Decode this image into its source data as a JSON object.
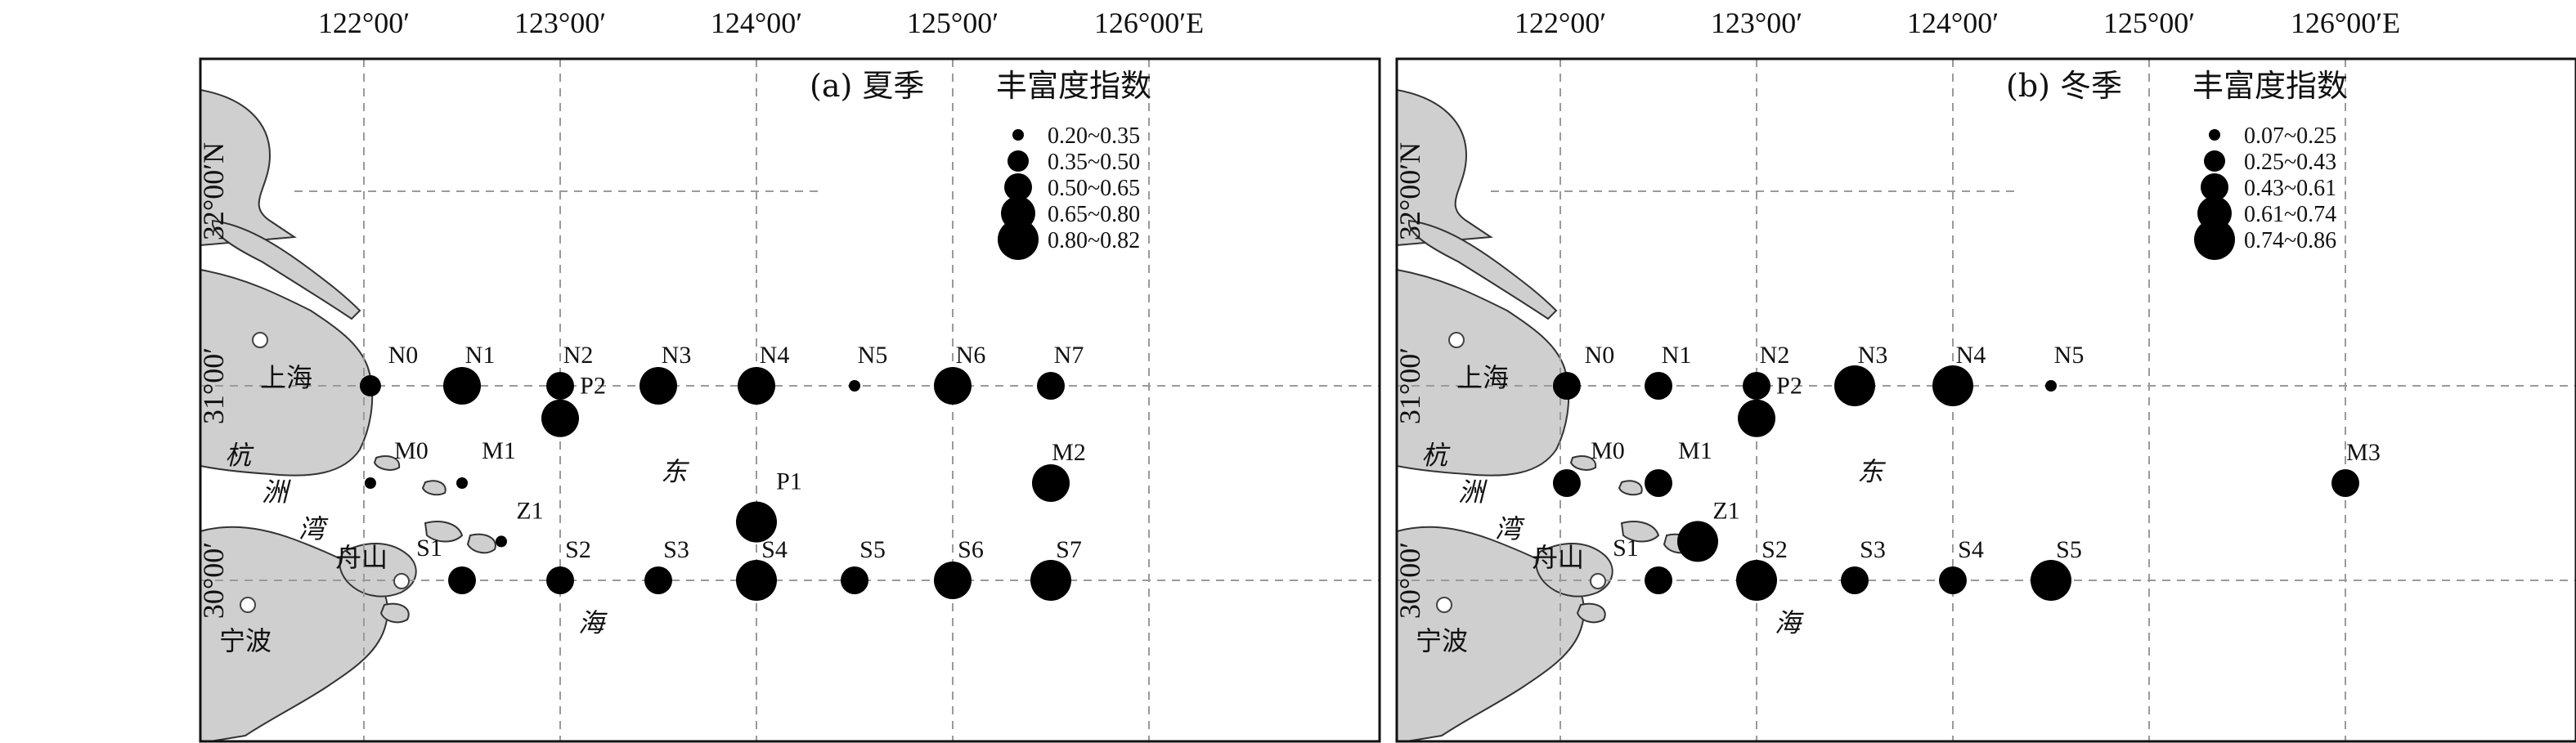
{
  "panels": [
    {
      "id": "a",
      "title": "(a) 夏季",
      "legend_title": "丰富度指数",
      "legend": [
        {
          "label": "0.20~0.35",
          "size": 1
        },
        {
          "label": "0.35~0.50",
          "size": 2
        },
        {
          "label": "0.50~0.65",
          "size": 3
        },
        {
          "label": "0.65~0.80",
          "size": 4
        },
        {
          "label": "0.80~0.82",
          "size": 5
        }
      ],
      "stations": [
        {
          "name": "N0",
          "lon": 122.033,
          "lat": 31.0,
          "class": 2
        },
        {
          "name": "N1",
          "lon": 122.5,
          "lat": 31.0,
          "class": 4
        },
        {
          "name": "N2",
          "lon": 123.0,
          "lat": 31.0,
          "class": 3
        },
        {
          "name": "N3",
          "lon": 123.5,
          "lat": 31.0,
          "class": 4
        },
        {
          "name": "N4",
          "lon": 124.0,
          "lat": 31.0,
          "class": 4
        },
        {
          "name": "N5",
          "lon": 124.5,
          "lat": 31.0,
          "class": 1
        },
        {
          "name": "N6",
          "lon": 125.0,
          "lat": 31.0,
          "class": 4
        },
        {
          "name": "N7",
          "lon": 125.5,
          "lat": 31.0,
          "class": 3
        },
        {
          "name": "P2",
          "lon": 123.0,
          "lat": 30.833,
          "class": 4
        },
        {
          "name": "M0",
          "lon": 122.033,
          "lat": 30.5,
          "class": 1
        },
        {
          "name": "M1",
          "lon": 122.5,
          "lat": 30.5,
          "class": 1
        },
        {
          "name": "M2",
          "lon": 125.5,
          "lat": 30.5,
          "class": 4
        },
        {
          "name": "P1",
          "lon": 124.0,
          "lat": 30.3,
          "class": 5
        },
        {
          "name": "Z1",
          "lon": 122.7,
          "lat": 30.2,
          "class": 1
        },
        {
          "name": "S1",
          "lon": 122.5,
          "lat": 30.0,
          "class": 3
        },
        {
          "name": "S2",
          "lon": 123.0,
          "lat": 30.0,
          "class": 3
        },
        {
          "name": "S3",
          "lon": 123.5,
          "lat": 30.0,
          "class": 3
        },
        {
          "name": "S4",
          "lon": 124.0,
          "lat": 30.0,
          "class": 5
        },
        {
          "name": "S5",
          "lon": 124.5,
          "lat": 30.0,
          "class": 3
        },
        {
          "name": "S6",
          "lon": 125.0,
          "lat": 30.0,
          "class": 4
        },
        {
          "name": "S7",
          "lon": 125.5,
          "lat": 30.0,
          "class": 5
        }
      ]
    },
    {
      "id": "b",
      "title": "(b) 冬季",
      "legend_title": "丰富度指数",
      "legend": [
        {
          "label": "0.07~0.25",
          "size": 1
        },
        {
          "label": "0.25~0.43",
          "size": 2
        },
        {
          "label": "0.43~0.61",
          "size": 3
        },
        {
          "label": "0.61~0.74",
          "size": 4
        },
        {
          "label": "0.74~0.86",
          "size": 5
        }
      ],
      "stations": [
        {
          "name": "N0",
          "lon": 122.033,
          "lat": 31.0,
          "class": 3
        },
        {
          "name": "N1",
          "lon": 122.5,
          "lat": 31.0,
          "class": 3
        },
        {
          "name": "N2",
          "lon": 123.0,
          "lat": 31.0,
          "class": 3
        },
        {
          "name": "N3",
          "lon": 123.5,
          "lat": 31.0,
          "class": 5
        },
        {
          "name": "N4",
          "lon": 124.0,
          "lat": 31.0,
          "class": 5
        },
        {
          "name": "N5",
          "lon": 124.5,
          "lat": 31.0,
          "class": 1
        },
        {
          "name": "P2",
          "lon": 123.0,
          "lat": 30.833,
          "class": 4
        },
        {
          "name": "M0",
          "lon": 122.033,
          "lat": 30.5,
          "class": 3
        },
        {
          "name": "M1",
          "lon": 122.5,
          "lat": 30.5,
          "class": 3
        },
        {
          "name": "M3",
          "lon": 126.0,
          "lat": 30.5,
          "class": 3
        },
        {
          "name": "Z1",
          "lon": 122.7,
          "lat": 30.2,
          "class": 5
        },
        {
          "name": "S1",
          "lon": 122.5,
          "lat": 30.0,
          "class": 3
        },
        {
          "name": "S2",
          "lon": 123.0,
          "lat": 30.0,
          "class": 5
        },
        {
          "name": "S3",
          "lon": 123.5,
          "lat": 30.0,
          "class": 3
        },
        {
          "name": "S4",
          "lon": 124.0,
          "lat": 30.0,
          "class": 3
        },
        {
          "name": "S5",
          "lon": 124.5,
          "lat": 30.0,
          "class": 5
        }
      ]
    }
  ],
  "axes": {
    "lon_ticks": [
      122.0,
      123.0,
      124.0,
      125.0,
      126.0
    ],
    "lon_labels": [
      "122°00′",
      "123°00′",
      "124°00′",
      "125°00′",
      "126°00′E"
    ],
    "lat_ticks": [
      32.0,
      31.0,
      30.0
    ],
    "lat_labels": [
      "32°00′N",
      "31°00′",
      "30°00′"
    ]
  },
  "places": {
    "shanghai": "上海",
    "ningbo": "宁波",
    "zhoushan": "舟山",
    "hang": "杭",
    "zhou": "洲",
    "wan": "湾",
    "dong": "东",
    "hai": "海"
  }
}
